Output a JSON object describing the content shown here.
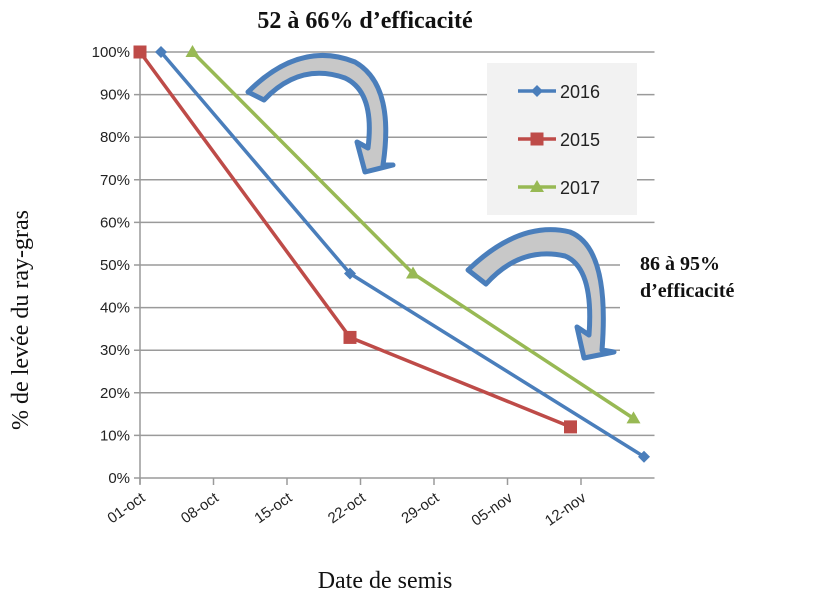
{
  "chart_data": {
    "type": "line",
    "title": "52 à 66% d’efficacité",
    "annotation": [
      "86 à 95%",
      "d’efficacité"
    ],
    "xlabel": "Date de semis",
    "ylabel": "% de levée du ray-gras",
    "x_ticks": [
      "01-oct",
      "08-oct",
      "15-oct",
      "22-oct",
      "29-oct",
      "05-nov",
      "12-nov"
    ],
    "y_ticks": [
      "0%",
      "10%",
      "20%",
      "30%",
      "40%",
      "50%",
      "60%",
      "70%",
      "80%",
      "90%",
      "100%"
    ],
    "xlim": [
      "01-oct",
      "19-nov"
    ],
    "ylim": [
      0,
      100
    ],
    "grid": "horizontal",
    "legend_placement": "top-right",
    "series": [
      {
        "name": "2016",
        "color": "#4a7ebb",
        "marker": "diamond",
        "points": [
          {
            "x": "03-oct",
            "y": 100
          },
          {
            "x": "21-oct",
            "y": 48
          },
          {
            "x": "18-nov",
            "y": 5
          }
        ]
      },
      {
        "name": "2015",
        "color": "#be4b48",
        "marker": "square",
        "points": [
          {
            "x": "01-oct",
            "y": 100
          },
          {
            "x": "21-oct",
            "y": 33
          },
          {
            "x": "11-nov",
            "y": 12
          }
        ]
      },
      {
        "name": "2017",
        "color": "#98b954",
        "marker": "triangle",
        "points": [
          {
            "x": "06-oct",
            "y": 100
          },
          {
            "x": "27-oct",
            "y": 48
          },
          {
            "x": "17-nov",
            "y": 14
          }
        ]
      }
    ],
    "arrow_color": "#4a7ebb",
    "arrow_fill": "#c8c8c8"
  }
}
